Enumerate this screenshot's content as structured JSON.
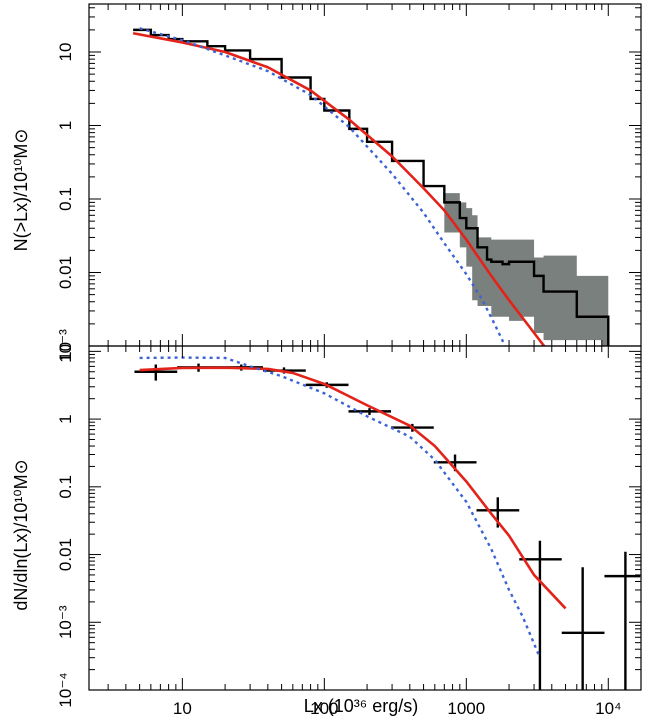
{
  "chart_data": [
    {
      "type": "line",
      "panel": "top",
      "ylabel": "N(>Lx)/10¹⁰M⊙",
      "x_scale": "log",
      "y_scale": "log",
      "xlim": [
        2.2,
        17000
      ],
      "ylim": [
        0.001,
        45
      ],
      "y_ticks": [
        {
          "value": 10,
          "label": "10"
        },
        {
          "value": 1,
          "label": "1"
        },
        {
          "value": 0.1,
          "label": "0.1"
        },
        {
          "value": 0.01,
          "label": "0.01"
        },
        {
          "value": 0.001,
          "label": "10⁻³"
        }
      ],
      "series": [
        {
          "style": "observed-step",
          "color": "#000000",
          "x": [
            4.5,
            6,
            8,
            10,
            15,
            20,
            30,
            50,
            80,
            100,
            150,
            200,
            300,
            500,
            700,
            900,
            1000,
            1200,
            1400,
            1500,
            1800,
            2000,
            2500,
            3000,
            3500,
            6000,
            10000
          ],
          "y": [
            20,
            17,
            15,
            14,
            12,
            10.5,
            8,
            4.5,
            2.3,
            1.6,
            0.9,
            0.6,
            0.33,
            0.15,
            0.09,
            0.055,
            0.04,
            0.022,
            0.015,
            0.014,
            0.013,
            0.014,
            0.014,
            0.009,
            0.0055,
            0.0025,
            0.0016
          ]
        },
        {
          "style": "uncertainty-band",
          "color": "#7a807d",
          "x": [
            700,
            900,
            1000,
            1100,
            1200,
            1500,
            2000,
            2500,
            3000,
            3500,
            6000,
            9000,
            10000
          ],
          "upper": [
            0.12,
            0.09,
            0.075,
            0.06,
            0.03,
            0.028,
            0.028,
            0.028,
            0.016,
            0.017,
            0.009,
            0.009,
            0.009
          ],
          "lower": [
            0.06,
            0.035,
            0.022,
            0.012,
            0.0042,
            0.0035,
            0.0025,
            0.0022,
            0.0025,
            0.0015,
            0.0012,
            0.0012,
            0.001
          ]
        },
        {
          "style": "model-solid",
          "color": "#e32319",
          "x": [
            4.5,
            10,
            20,
            40,
            80,
            150,
            300,
            500,
            700,
            1000,
            1500,
            2000,
            2800,
            3600
          ],
          "y": [
            18,
            13.5,
            10,
            6.2,
            3,
            1.2,
            0.38,
            0.14,
            0.07,
            0.028,
            0.009,
            0.0042,
            0.0018,
            0.00095
          ]
        },
        {
          "style": "model-dotted",
          "color": "#3c63d3",
          "x": [
            5,
            10,
            20,
            40,
            80,
            150,
            300,
            500,
            700,
            1000,
            1300,
            1600,
            1900
          ],
          "y": [
            21,
            14.5,
            9,
            5.5,
            2.6,
            0.95,
            0.22,
            0.065,
            0.025,
            0.0095,
            0.0042,
            0.0019,
            0.00095
          ]
        }
      ]
    },
    {
      "type": "scatter",
      "panel": "bottom",
      "xlabel": "Lx (10³⁶ erg/s)",
      "ylabel": "dN/dln(Lx)/10¹⁰M⊙",
      "x_scale": "log",
      "y_scale": "log",
      "xlim": [
        2.2,
        17000
      ],
      "ylim": [
        0.0001,
        12
      ],
      "x_ticks": [
        {
          "value": 10,
          "label": "10"
        },
        {
          "value": 100,
          "label": "100"
        },
        {
          "value": 1000,
          "label": "1000"
        },
        {
          "value": 10000,
          "label": "10⁴"
        }
      ],
      "y_ticks": [
        {
          "value": 10,
          "label": "10"
        },
        {
          "value": 1,
          "label": "1"
        },
        {
          "value": 0.1,
          "label": "0.1"
        },
        {
          "value": 0.01,
          "label": "0.01"
        },
        {
          "value": 0.001,
          "label": "10⁻³"
        },
        {
          "value": 0.0001,
          "label": "10⁻⁴"
        }
      ],
      "series": [
        {
          "style": "binned-data",
          "color": "#000000",
          "points": [
            {
              "x": 6.5,
              "xlo": 4.6,
              "xhi": 9.2,
              "y": 5.0,
              "ylo": 3.7,
              "yhi": 6.4
            },
            {
              "x": 13,
              "xlo": 9.2,
              "xhi": 18.4,
              "y": 5.8,
              "ylo": 5.0,
              "yhi": 6.6
            },
            {
              "x": 26,
              "xlo": 18.4,
              "xhi": 37,
              "y": 5.8,
              "ylo": 5.2,
              "yhi": 6.4
            },
            {
              "x": 52,
              "xlo": 37,
              "xhi": 74,
              "y": 5.2,
              "ylo": 4.7,
              "yhi": 5.8
            },
            {
              "x": 104,
              "xlo": 74,
              "xhi": 148,
              "y": 3.2,
              "ylo": 2.9,
              "yhi": 3.5
            },
            {
              "x": 208,
              "xlo": 148,
              "xhi": 295,
              "y": 1.3,
              "ylo": 1.15,
              "yhi": 1.45
            },
            {
              "x": 417,
              "xlo": 295,
              "xhi": 590,
              "y": 0.75,
              "ylo": 0.65,
              "yhi": 0.85
            },
            {
              "x": 833,
              "xlo": 590,
              "xhi": 1180,
              "y": 0.23,
              "ylo": 0.17,
              "yhi": 0.3
            },
            {
              "x": 1666,
              "xlo": 1180,
              "xhi": 2360,
              "y": 0.045,
              "ylo": 0.025,
              "yhi": 0.07
            },
            {
              "x": 3300,
              "xlo": 2360,
              "xhi": 4700,
              "y": 0.0085,
              "ylo": 0.0001,
              "yhi": 0.016
            },
            {
              "x": 6600,
              "xlo": 4700,
              "xhi": 9400,
              "y": 0.0007,
              "ylo": 0.0001,
              "yhi": 0.0065
            },
            {
              "x": 13200,
              "xlo": 9400,
              "xhi": 16800,
              "y": 0.0048,
              "ylo": 0.0001,
              "yhi": 0.011
            }
          ]
        },
        {
          "style": "model-solid",
          "color": "#e32319",
          "x": [
            5,
            10,
            20,
            40,
            60,
            100,
            200,
            400,
            600,
            1000,
            1500,
            2000,
            3000,
            5000
          ],
          "y": [
            5.3,
            5.7,
            5.75,
            5.5,
            4.8,
            3.3,
            1.6,
            0.8,
            0.4,
            0.12,
            0.04,
            0.019,
            0.005,
            0.0016
          ]
        },
        {
          "style": "model-dotted",
          "color": "#3c63d3",
          "x": [
            5,
            10,
            20,
            30,
            50,
            100,
            200,
            400,
            600,
            1000,
            1500,
            2000,
            2500,
            3300
          ],
          "y": [
            8,
            8.1,
            8,
            6,
            4.3,
            2.4,
            1.1,
            0.55,
            0.25,
            0.06,
            0.012,
            0.003,
            0.0012,
            0.0003
          ]
        }
      ]
    }
  ]
}
